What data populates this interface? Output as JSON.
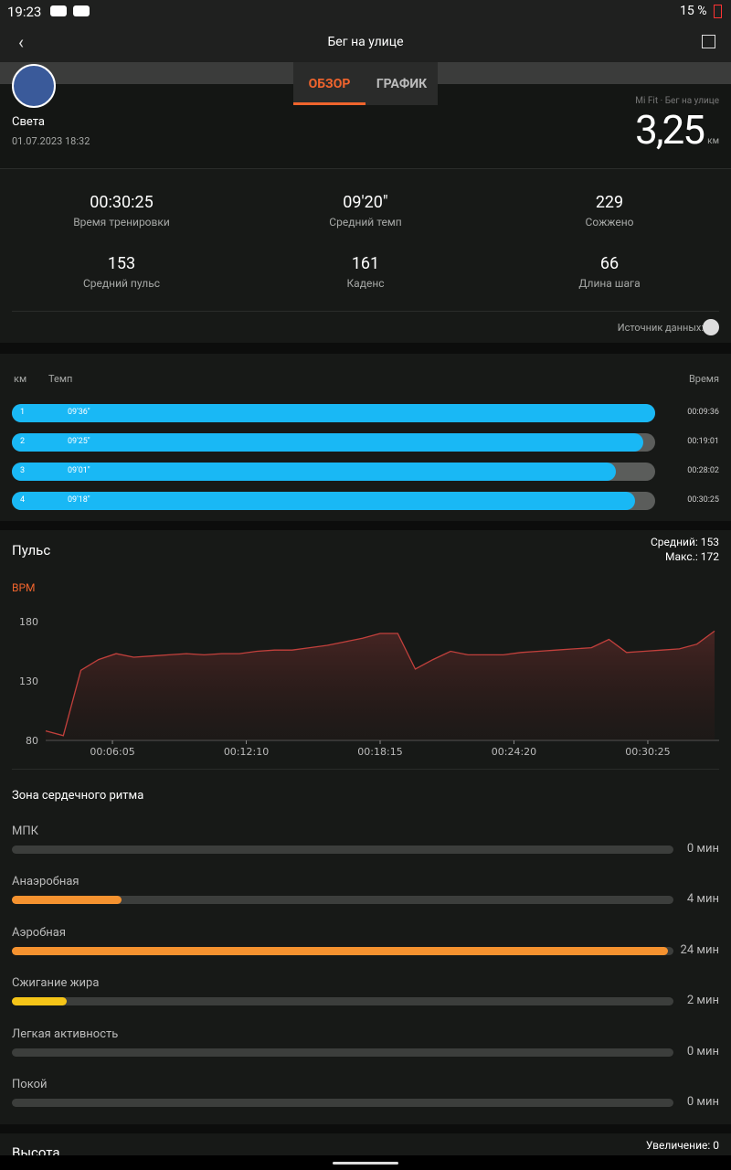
{
  "status_bar": {
    "time": "19:23",
    "battery": "15 %"
  },
  "header": {
    "title": "Бег на улице"
  },
  "tabs": [
    "ОБЗОР",
    "ГРАФИК"
  ],
  "profile": {
    "name": "Света",
    "date": "01.07.2023 18:32",
    "source": "Mi Fit · Бег на улице",
    "distance": "3,25",
    "distance_unit": "км"
  },
  "stats": [
    {
      "value": "00:30:25",
      "label": "Время тренировки"
    },
    {
      "value": "09'20\"",
      "label": "Средний темп"
    },
    {
      "value": "229",
      "label": "Сожжено"
    },
    {
      "value": "153",
      "label": "Средний пульс"
    },
    {
      "value": "161",
      "label": "Каденс"
    },
    {
      "value": "66",
      "label": "Длина шага"
    }
  ],
  "data_source": "Источник данных:",
  "splits": {
    "headers": [
      "км",
      "Темп",
      "Время"
    ],
    "rows": [
      {
        "km": "1",
        "pace": "09'36\"",
        "time": "00:09:36"
      },
      {
        "km": "2",
        "pace": "09'25\"",
        "time": "00:19:01"
      },
      {
        "km": "3",
        "pace": "09'01\"",
        "time": "00:28:02"
      },
      {
        "km": "4",
        "pace": "09'18\"",
        "time": "00:30:25"
      }
    ]
  },
  "heart_rate": {
    "title": "Пульс",
    "average": "Средний: 153",
    "max": "Макс.: 172",
    "unit": "BPM",
    "ylim": [
      80,
      180
    ],
    "yticks": [
      80,
      130,
      180
    ],
    "xlim": [
      183,
      2007
    ],
    "xticks": [
      {
        "value": 365,
        "label": "00:06:05"
      },
      {
        "value": 730,
        "label": "00:12:10"
      },
      {
        "value": 1095,
        "label": "00:18:15"
      },
      {
        "value": 1460,
        "label": "00:24:20"
      },
      {
        "value": 1825,
        "label": "00:30:25"
      }
    ],
    "x": [
      183,
      231,
      279,
      327,
      375,
      423,
      471,
      519,
      567,
      615,
      663,
      711,
      759,
      807,
      855,
      903,
      951,
      999,
      1047,
      1095,
      1143,
      1191,
      1239,
      1287,
      1335,
      1383,
      1431,
      1479,
      1527,
      1575,
      1623,
      1671,
      1719,
      1767,
      1815,
      1863,
      1911,
      1959,
      2007
    ],
    "values": [
      88,
      84,
      139,
      148,
      153,
      150,
      151,
      152,
      153,
      152,
      153,
      153,
      155,
      156,
      156,
      158,
      160,
      163,
      166,
      170,
      170,
      140,
      148,
      155,
      152,
      152,
      152,
      154,
      155,
      156,
      157,
      158,
      165,
      154,
      155,
      156,
      157,
      161,
      172
    ]
  },
  "zones": {
    "title": "Зона сердечного ритма",
    "items": [
      {
        "name": "МПК",
        "duration": {
          "value": 0,
          "label": "0 мин"
        }
      },
      {
        "name": "Анаэробная",
        "duration": {
          "value": 4,
          "label": "4 мин"
        }
      },
      {
        "name": "Аэробная",
        "duration": {
          "value": 24,
          "label": "24 мин"
        }
      },
      {
        "name": "Сжигание жира",
        "duration": {
          "value": 2,
          "label": "2 мин"
        }
      },
      {
        "name": "Легкая активность",
        "duration": {
          "value": 0,
          "label": "0 мин"
        }
      },
      {
        "name": "Покой",
        "duration": {
          "value": 0,
          "label": "0 мин"
        }
      }
    ]
  },
  "altitude": {
    "title": "Высота",
    "gain": "Увеличение: 0"
  }
}
